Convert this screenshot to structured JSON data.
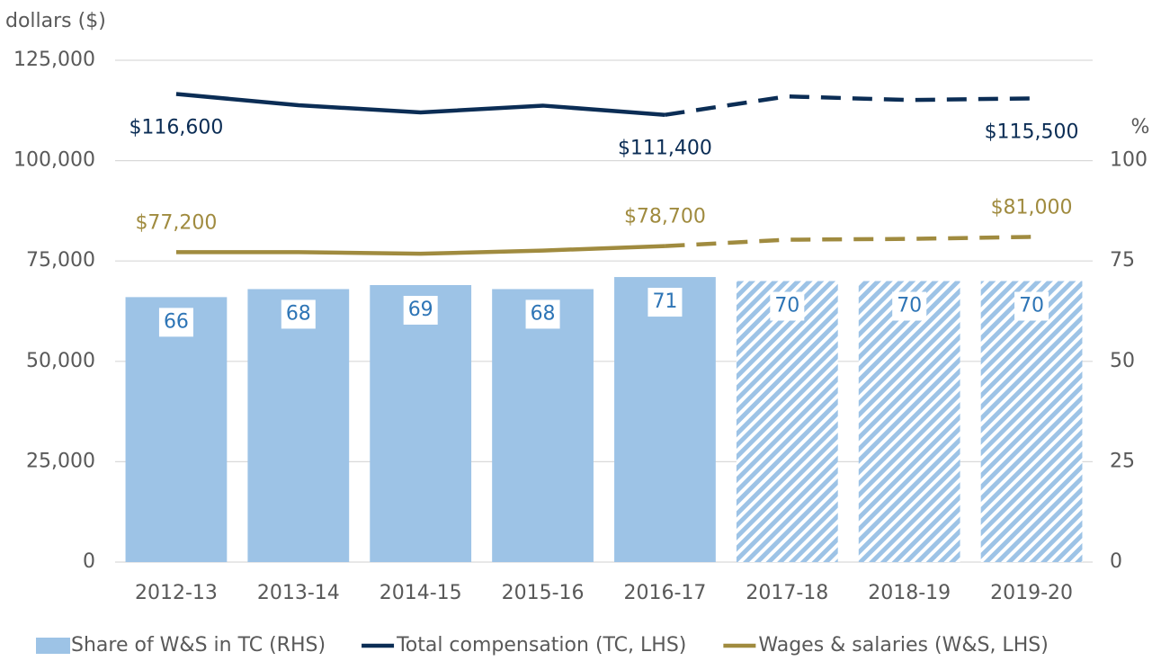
{
  "chart_data": {
    "type": "bar",
    "y_label": "dollars ($)",
    "y2_label": "%",
    "categories": [
      "2012-13",
      "2013-14",
      "2014-15",
      "2015-16",
      "2016-17",
      "2017-18",
      "2018-19",
      "2019-20"
    ],
    "forecast_start_index": 5,
    "series": [
      {
        "name": "Share of W&S in TC (RHS)",
        "type": "bar",
        "axis": "y2",
        "color": "#9dc3e6",
        "label_color": "#2e75b6",
        "values": [
          66,
          68,
          69,
          68,
          71,
          70,
          70,
          70
        ]
      },
      {
        "name": "Total compensation (TC, LHS)",
        "type": "line",
        "color": "#0b2d55",
        "label_position": "below",
        "values": [
          116600,
          113800,
          112000,
          113700,
          111400,
          116000,
          115100,
          115500
        ],
        "value_labels": [
          "$116,600",
          null,
          null,
          null,
          "$111,400",
          null,
          null,
          "$115,500"
        ]
      },
      {
        "name": "Wages & salaries (W&S, LHS)",
        "type": "line",
        "color": "#a08b3f",
        "label_position": "above",
        "values": [
          77200,
          77200,
          76800,
          77600,
          78700,
          80300,
          80500,
          81000
        ],
        "value_labels": [
          "$77,200",
          null,
          null,
          null,
          "$78,700",
          null,
          null,
          "$81,000"
        ]
      }
    ],
    "ylim": [
      0,
      125000
    ],
    "yticks": [
      0,
      {
        "value": 25000,
        "label": "25,000"
      },
      {
        "value": 50000,
        "label": "50,000"
      },
      {
        "value": 75000,
        "label": "75,000"
      },
      {
        "value": 100000,
        "label": "100,000"
      },
      {
        "value": 125000,
        "label": "125,000"
      }
    ],
    "y2lim": [
      0,
      125
    ],
    "y2ticks": [
      0,
      25,
      50,
      75,
      100
    ],
    "grid": true,
    "legend": "bottom"
  }
}
